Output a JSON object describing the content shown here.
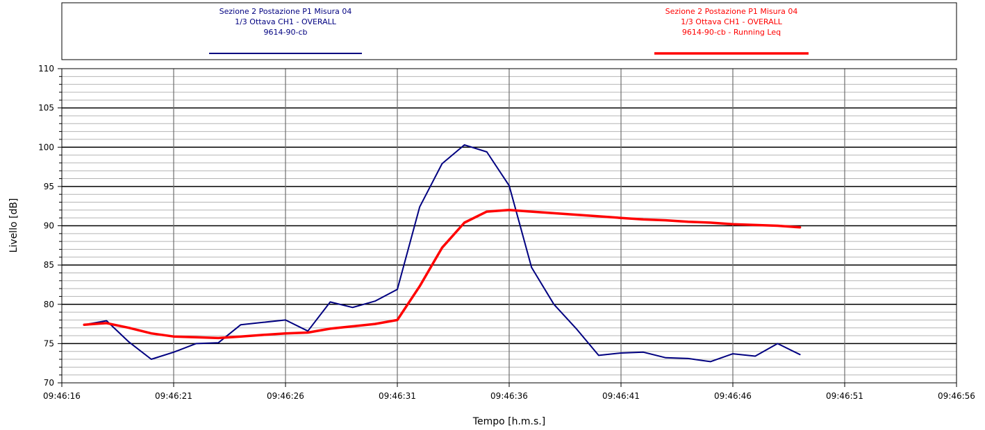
{
  "chart_data": {
    "type": "line",
    "xlabel": "Tempo [h.m.s.]",
    "ylabel": "Livello [dB]",
    "ylim": [
      70,
      110
    ],
    "xlim": [
      "09:46:16",
      "09:46:56"
    ],
    "x_ticks": [
      "09:46:16",
      "09:46:21",
      "09:46:26",
      "09:46:31",
      "09:46:36",
      "09:46:41",
      "09:46:46",
      "09:46:51",
      "09:46:56"
    ],
    "y_ticks": [
      70,
      75,
      80,
      85,
      90,
      95,
      100,
      105,
      110
    ],
    "grid": true,
    "legend_position": "top",
    "series": [
      {
        "legend": [
          "Sezione 2 Postazione P1 Misura 04",
          "1/3 Ottava CH1 - OVERALL",
          "9614-90-cb"
        ],
        "color": "#000080",
        "x": [
          "09:46:17",
          "09:46:18",
          "09:46:19",
          "09:46:20",
          "09:46:21",
          "09:46:22",
          "09:46:23",
          "09:46:24",
          "09:46:25",
          "09:46:26",
          "09:46:27",
          "09:46:28",
          "09:46:29",
          "09:46:30",
          "09:46:31",
          "09:46:32",
          "09:46:33",
          "09:46:34",
          "09:46:35",
          "09:46:36",
          "09:46:37",
          "09:46:38",
          "09:46:39",
          "09:46:40",
          "09:46:41",
          "09:46:42",
          "09:46:43",
          "09:46:44",
          "09:46:45",
          "09:46:46",
          "09:46:47",
          "09:46:48",
          "09:46:49"
        ],
        "values": [
          77.4,
          77.9,
          75.2,
          73.0,
          73.9,
          75.0,
          75.1,
          77.4,
          77.7,
          78.0,
          76.6,
          80.3,
          79.6,
          80.4,
          81.9,
          92.4,
          97.9,
          100.3,
          99.4,
          95.1,
          84.7,
          80.0,
          76.9,
          73.5,
          73.8,
          73.9,
          73.2,
          73.1,
          72.7,
          73.7,
          73.4,
          75.0,
          73.6
        ]
      },
      {
        "legend": [
          "Sezione 2 Postazione P1 Misura 04",
          "1/3 Ottava CH1 - OVERALL",
          "9614-90-cb - Running Leq"
        ],
        "color": "#ff0000",
        "x": [
          "09:46:17",
          "09:46:18",
          "09:46:19",
          "09:46:20",
          "09:46:21",
          "09:46:22",
          "09:46:23",
          "09:46:24",
          "09:46:25",
          "09:46:26",
          "09:46:27",
          "09:46:28",
          "09:46:29",
          "09:46:30",
          "09:46:31",
          "09:46:32",
          "09:46:33",
          "09:46:34",
          "09:46:35",
          "09:46:36",
          "09:46:37",
          "09:46:38",
          "09:46:39",
          "09:46:40",
          "09:46:41",
          "09:46:42",
          "09:46:43",
          "09:46:44",
          "09:46:45",
          "09:46:46",
          "09:46:47",
          "09:46:48",
          "09:46:49"
        ],
        "values": [
          77.4,
          77.6,
          77.0,
          76.3,
          75.9,
          75.8,
          75.7,
          75.9,
          76.1,
          76.3,
          76.4,
          76.9,
          77.2,
          77.5,
          78.0,
          82.3,
          87.2,
          90.4,
          91.8,
          92.0,
          91.8,
          91.6,
          91.4,
          91.2,
          91.0,
          90.8,
          90.7,
          90.5,
          90.4,
          90.2,
          90.1,
          90.0,
          89.8
        ]
      }
    ]
  }
}
